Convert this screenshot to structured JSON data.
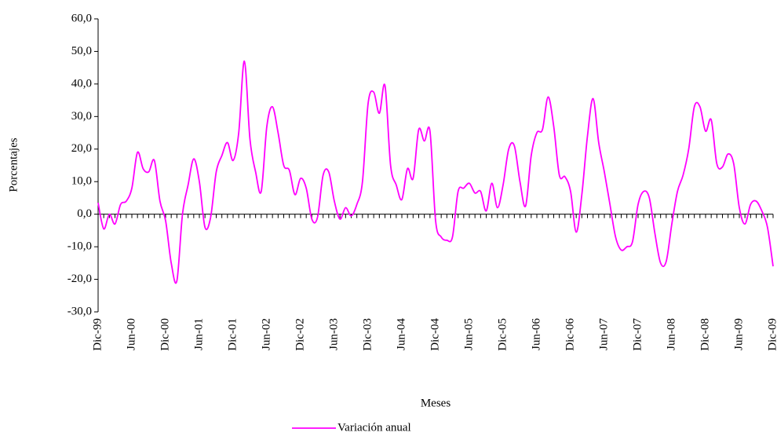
{
  "chart_data": {
    "type": "line",
    "x_label": "Meses",
    "y_label": "Porcentajes",
    "categories": [
      "Dic-99",
      null,
      null,
      null,
      null,
      null,
      "Jun-00",
      null,
      null,
      null,
      null,
      null,
      "Dic-00",
      null,
      null,
      null,
      null,
      null,
      "Jun-01",
      null,
      null,
      null,
      null,
      null,
      "Dic-01",
      null,
      null,
      null,
      null,
      null,
      "Jun-02",
      null,
      null,
      null,
      null,
      null,
      "Dic-02",
      null,
      null,
      null,
      null,
      null,
      "Jun-03",
      null,
      null,
      null,
      null,
      null,
      "Dic-03",
      null,
      null,
      null,
      null,
      null,
      "Jun-04",
      null,
      null,
      null,
      null,
      null,
      "Dic-04",
      null,
      null,
      null,
      null,
      null,
      "Jun-05",
      null,
      null,
      null,
      null,
      null,
      "Dic-05",
      null,
      null,
      null,
      null,
      null,
      "Jun-06",
      null,
      null,
      null,
      null,
      null,
      "Dic-06",
      null,
      null,
      null,
      null,
      null,
      "Jun-07",
      null,
      null,
      null,
      null,
      null,
      "Dic-07",
      null,
      null,
      null,
      null,
      null,
      "Jun-08",
      null,
      null,
      null,
      null,
      null,
      "Dic-08",
      null,
      null,
      null,
      null,
      null,
      "Jun-09",
      null,
      null,
      null,
      null,
      null,
      "Dic-09"
    ],
    "series": [
      {
        "name": "Variación anual",
        "color": "#ff00ff",
        "values": [
          3.5,
          -4.5,
          0,
          -3,
          3,
          4,
          8,
          19,
          14,
          13,
          16.5,
          4,
          -2,
          -15,
          -20.5,
          0,
          9,
          17,
          10,
          -4,
          -1,
          13,
          18,
          22,
          16.5,
          25,
          47,
          23,
          13,
          7,
          27,
          33,
          25,
          15,
          13.5,
          6,
          11,
          8,
          -1.5,
          -1,
          12,
          13,
          4,
          -1.5,
          2,
          -0.5,
          3,
          10,
          34,
          37.5,
          31,
          39.5,
          15,
          9,
          4.5,
          14,
          11,
          26,
          22.5,
          25.5,
          -2,
          -7,
          -8,
          -7,
          7,
          8,
          9.5,
          6.5,
          7,
          1,
          9.5,
          2,
          9,
          20,
          21,
          10,
          2.5,
          18,
          25,
          26,
          36,
          27,
          12,
          11.5,
          7,
          -5.5,
          6,
          24,
          35.5,
          22,
          13,
          3,
          -7,
          -11,
          -10,
          -8.5,
          3,
          7,
          5,
          -6,
          -15,
          -14.5,
          -3,
          7,
          12,
          20,
          33,
          33,
          25.5,
          29,
          15.5,
          14.5,
          18.5,
          15.5,
          2,
          -3,
          3,
          4,
          1,
          -4,
          -16
        ]
      }
    ],
    "ylim": [
      -30,
      60
    ],
    "yticks": [
      {
        "value": -30,
        "label": "-30,0"
      },
      {
        "value": -20,
        "label": "-20,0"
      },
      {
        "value": -10,
        "label": "-10,0"
      },
      {
        "value": 0,
        "label": "0,0"
      },
      {
        "value": 10,
        "label": "10,0"
      },
      {
        "value": 20,
        "label": "20,0"
      },
      {
        "value": 30,
        "label": "30,0"
      },
      {
        "value": 40,
        "label": "40,0"
      },
      {
        "value": 50,
        "label": "50,0"
      },
      {
        "value": 60,
        "label": "60,0"
      }
    ],
    "legend": "bottom"
  }
}
